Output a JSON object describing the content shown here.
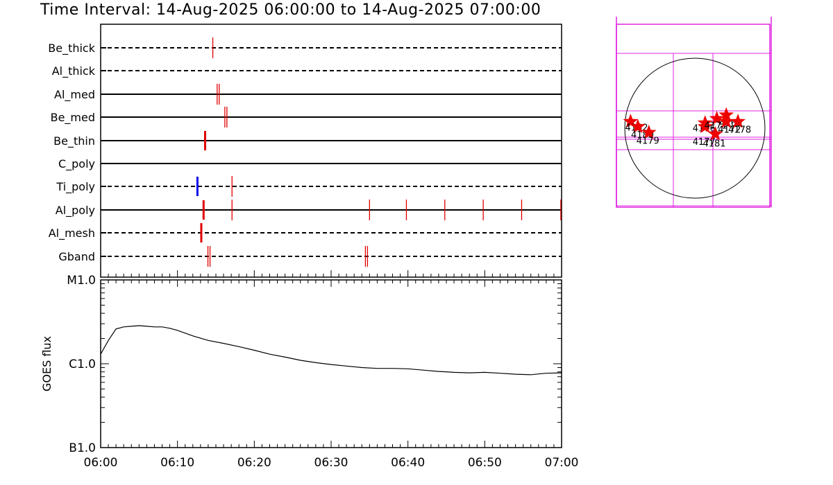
{
  "chart_data": [
    {
      "type": "timeline",
      "title": "Time Interval: 14-Aug-2025 06:00:00 to 14-Aug-2025 07:00:00",
      "x_range_minutes": [
        0,
        60
      ],
      "channels": [
        {
          "name": "Be_thick",
          "style": "dashed",
          "events": [
            {
              "t": 14.6,
              "color": "#e00000",
              "double": false
            }
          ]
        },
        {
          "name": "Al_thick",
          "style": "dashed",
          "events": []
        },
        {
          "name": "Al_med",
          "style": "solid",
          "events": [
            {
              "t": 15.3,
              "color": "#e00000",
              "double": true
            }
          ]
        },
        {
          "name": "Be_med",
          "style": "solid",
          "events": [
            {
              "t": 16.3,
              "color": "#e00000",
              "double": true
            }
          ]
        },
        {
          "name": "Be_thin",
          "style": "solid",
          "events": [
            {
              "t": 13.6,
              "color": "#e00000",
              "double": false,
              "thick": true
            }
          ]
        },
        {
          "name": "C_poly",
          "style": "solid",
          "events": []
        },
        {
          "name": "Ti_poly",
          "style": "dashed",
          "events": [
            {
              "t": 12.6,
              "color": "#0000ee",
              "double": false,
              "thick": true
            },
            {
              "t": 17.1,
              "color": "#e00000",
              "double": false
            }
          ]
        },
        {
          "name": "Al_poly",
          "style": "solid",
          "events": [
            {
              "t": 13.4,
              "color": "#e00000",
              "double": false,
              "thick": true
            },
            {
              "t": 17.1,
              "color": "#e00000",
              "double": false
            },
            {
              "t": 35.0,
              "color": "#e00000",
              "double": false
            },
            {
              "t": 39.8,
              "color": "#e00000",
              "double": false
            },
            {
              "t": 44.8,
              "color": "#e00000",
              "double": false
            },
            {
              "t": 49.8,
              "color": "#e00000",
              "double": false
            },
            {
              "t": 54.8,
              "color": "#e00000",
              "double": false
            },
            {
              "t": 59.9,
              "color": "#e00000",
              "double": false
            }
          ]
        },
        {
          "name": "Al_mesh",
          "style": "dashed",
          "events": [
            {
              "t": 13.1,
              "color": "#e00000",
              "double": false,
              "thick": true
            }
          ]
        },
        {
          "name": "Gband",
          "style": "dashed",
          "events": [
            {
              "t": 14.1,
              "color": "#e00000",
              "double": true
            },
            {
              "t": 34.6,
              "color": "#e00000",
              "double": true
            }
          ]
        }
      ]
    },
    {
      "type": "line",
      "ylabel": "GOES flux",
      "y_scale": "log",
      "y_ticks": [
        "M1.0",
        "C1.0",
        "B1.0"
      ],
      "y_range_log": [
        -7,
        -5
      ],
      "x_ticks": [
        "06:00",
        "06:10",
        "06:20",
        "06:30",
        "06:40",
        "06:50",
        "07:00"
      ],
      "x_range_minutes": [
        0,
        60
      ],
      "series": [
        {
          "x": [
            0,
            1,
            2,
            3,
            4,
            5,
            6,
            7,
            8,
            9,
            10,
            12,
            14,
            16,
            18,
            20,
            22,
            24,
            26,
            28,
            30,
            32,
            34,
            36,
            38,
            40,
            42,
            44,
            46,
            48,
            50,
            52,
            54,
            56,
            58,
            60
          ],
          "y": [
            1.3e-06,
            1.9e-06,
            2.6e-06,
            2.75e-06,
            2.8e-06,
            2.85e-06,
            2.8e-06,
            2.75e-06,
            2.75e-06,
            2.65e-06,
            2.5e-06,
            2.15e-06,
            1.9e-06,
            1.75e-06,
            1.6e-06,
            1.45e-06,
            1.3e-06,
            1.2e-06,
            1.1e-06,
            1.03e-06,
            9.8e-07,
            9.4e-07,
            9e-07,
            8.8e-07,
            8.8e-07,
            8.7e-07,
            8.4e-07,
            8.1e-07,
            7.9e-07,
            7.8e-07,
            7.9e-07,
            7.7e-07,
            7.5e-07,
            7.4e-07,
            7.7e-07,
            7.8e-07
          ]
        }
      ]
    },
    {
      "type": "scatter",
      "description_type": "active_region_map",
      "regions": [
        {
          "id": "4182",
          "x": -880,
          "y": 90
        },
        {
          "id": "4180",
          "x": -780,
          "y": 20
        },
        {
          "id": "4179",
          "x": -630,
          "y": -60
        },
        {
          "id": "4176",
          "x": 140,
          "y": 70
        },
        {
          "id": "4177",
          "x": 140,
          "y": 20
        },
        {
          "id": "4171",
          "x": 300,
          "y": 130
        },
        {
          "id": "4169",
          "x": 430,
          "y": 180
        },
        {
          "id": "4172",
          "x": 430,
          "y": 90
        },
        {
          "id": "4178",
          "x": 590,
          "y": 90
        },
        {
          "id": "4181",
          "x": 280,
          "y": -80
        }
      ]
    }
  ]
}
